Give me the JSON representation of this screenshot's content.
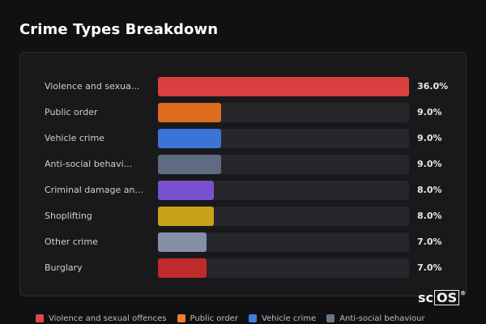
{
  "page": {
    "title": "Crime Types Breakdown"
  },
  "chart_data": {
    "type": "bar",
    "orientation": "horizontal",
    "title": "Crime Types Breakdown",
    "categories": [
      "Violence and sexua...",
      "Public order",
      "Vehicle crime",
      "Anti-social behavi...",
      "Criminal damage an...",
      "Shoplifting",
      "Other crime",
      "Burglary"
    ],
    "values": [
      36.0,
      9.0,
      9.0,
      9.0,
      8.0,
      8.0,
      7.0,
      7.0
    ],
    "value_labels": [
      "36.0%",
      "9.0%",
      "9.0%",
      "9.0%",
      "8.0%",
      "8.0%",
      "7.0%",
      "7.0%"
    ],
    "colors": [
      "#d8413f",
      "#dd6c1f",
      "#3b74d6",
      "#5f6b80",
      "#7a50d0",
      "#c9a01a",
      "#8590a6",
      "#bf2b2b"
    ],
    "xlim": [
      0,
      36.0
    ],
    "legend_position": "bottom",
    "legend": [
      {
        "label": "Violence and sexual offences",
        "color": "#e04848"
      },
      {
        "label": "Public order",
        "color": "#f08030"
      },
      {
        "label": "Vehicle crime",
        "color": "#3f7ee0"
      },
      {
        "label": "Anti-social behaviour",
        "color": "#6b7588"
      }
    ]
  },
  "brand": {
    "prefix": "sc",
    "boxed": "OS",
    "mark": "®"
  }
}
